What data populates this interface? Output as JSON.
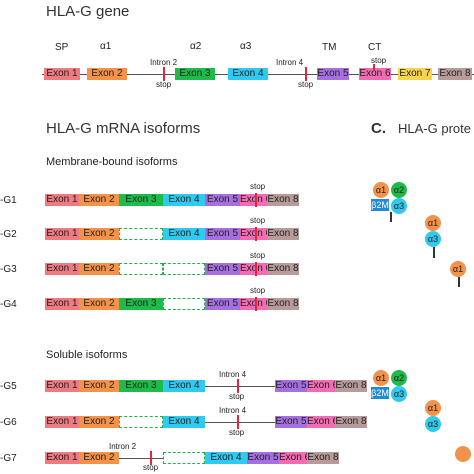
{
  "gene": {
    "title": "HLA-G gene",
    "domains": [
      "SP",
      "α1",
      "α2",
      "α3",
      "TM",
      "CT"
    ],
    "introns": [
      "Intron 2",
      "Intron 4"
    ],
    "stop": "stop",
    "exons": [
      "Exon 1",
      "Exon 2",
      "Exon 3",
      "Exon 4",
      "Exon 5",
      "Exon 6",
      "Exon 7",
      "Exon 8"
    ]
  },
  "mrna": {
    "title": "HLA-G mRNA isoforms",
    "membrane_title": "Membrane-bound isoforms",
    "soluble_title": "Soluble isoforms",
    "stop": "stop",
    "intron4": "Intron 4",
    "intron2": "Intron 2",
    "labels": [
      "-G1",
      "-G2",
      "-G3",
      "-G4",
      "-G5",
      "-G6",
      "-G7"
    ],
    "exons": [
      "Exon 1",
      "Exon 2",
      "Exon 3",
      "Exon 4",
      "Exon 5",
      "Exon 6",
      "Exon 8"
    ]
  },
  "protein": {
    "title_letter": "C.",
    "title_text": "HLA-G prote",
    "alpha1": "α1",
    "alpha2": "α2",
    "alpha3": "α3",
    "b2m": "β2M"
  },
  "colors": {
    "exon1": "#ef7a80",
    "exon2": "#f4924a",
    "exon3": "#1dbb4a",
    "exon4": "#2fcaf0",
    "exon5": "#a66fe0",
    "exon6": "#f36bb2",
    "exon7": "#f7d44e",
    "exon8": "#b79a9a",
    "stop": "#e8243c",
    "b2m": "#1f8bd8"
  }
}
